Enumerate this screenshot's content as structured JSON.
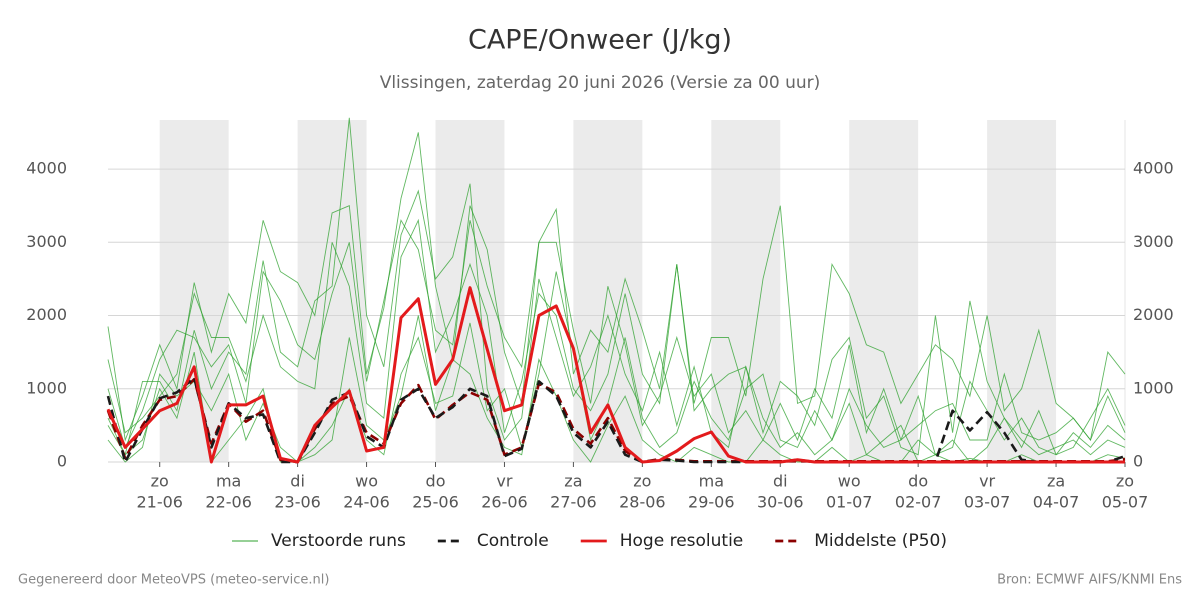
{
  "chart_data": {
    "type": "line",
    "title": "CAPE/Onweer (J/kg)",
    "subtitle": "Vlissingen, zaterdag 20 juni 2026 (Versie za 00 uur)",
    "footer_left": "Gegenereerd door MeteoVPS (meteo-service.nl)",
    "footer_right": "Bron: ECMWF AIFS/KNMI Ens",
    "x": [
      0.25,
      0.5,
      0.75,
      1,
      1.25,
      1.5,
      1.75,
      2,
      2.25,
      2.5,
      2.75,
      3,
      3.25,
      3.5,
      3.75,
      4,
      4.25,
      4.5,
      4.75,
      5,
      5.25,
      5.5,
      5.75,
      6,
      6.25,
      6.5,
      6.75,
      7,
      7.25,
      7.5,
      7.75,
      8,
      8.25,
      8.5,
      8.75,
      9,
      9.25,
      9.5,
      9.75,
      10,
      10.25,
      10.5,
      10.75,
      11,
      11.25,
      11.5,
      11.75,
      12,
      12.25,
      12.5,
      12.75,
      13,
      13.25,
      13.5,
      13.75,
      14,
      14.25,
      14.5,
      14.75,
      15
    ],
    "xlim": [
      0.25,
      15
    ],
    "xticks": [
      {
        "value": 1,
        "label": "zo",
        "date": "21-06"
      },
      {
        "value": 2,
        "label": "ma",
        "date": "22-06"
      },
      {
        "value": 3,
        "label": "di",
        "date": "23-06"
      },
      {
        "value": 4,
        "label": "wo",
        "date": "24-06"
      },
      {
        "value": 5,
        "label": "do",
        "date": "25-06"
      },
      {
        "value": 6,
        "label": "vr",
        "date": "26-06"
      },
      {
        "value": 7,
        "label": "za",
        "date": "27-06"
      },
      {
        "value": 8,
        "label": "zo",
        "date": "28-06"
      },
      {
        "value": 9,
        "label": "ma",
        "date": "29-06"
      },
      {
        "value": 10,
        "label": "di",
        "date": "30-06"
      },
      {
        "value": 11,
        "label": "wo",
        "date": "01-07"
      },
      {
        "value": 12,
        "label": "do",
        "date": "02-07"
      },
      {
        "value": 13,
        "label": "vr",
        "date": "03-07"
      },
      {
        "value": 14,
        "label": "za",
        "date": "04-07"
      },
      {
        "value": 15,
        "label": "zo",
        "date": "05-07"
      }
    ],
    "ylim": [
      0,
      4670
    ],
    "yticks": [
      0,
      1000,
      2000,
      3000,
      4000
    ],
    "grid": true,
    "ensemble": {
      "name": "Verstoorde runs",
      "color": "#2ca02c",
      "members": [
        [
          1850,
          300,
          900,
          1600,
          1000,
          2450,
          1500,
          2300,
          1900,
          3300,
          2600,
          2450,
          2000,
          3400,
          3500,
          1200,
          2100,
          3600,
          4500,
          2400,
          1400,
          3500,
          2900,
          1500,
          800,
          3000,
          3450,
          1200,
          1800,
          1500,
          2500,
          1800,
          1000,
          2700,
          800,
          1700,
          1700,
          900,
          2500,
          3500,
          800,
          900,
          2700,
          2300,
          1600,
          1500,
          800,
          1200,
          1600,
          1400,
          900,
          2000,
          700,
          1000,
          1800,
          800,
          600,
          300,
          1500,
          1200
        ],
        [
          500,
          100,
          1100,
          1100,
          700,
          1800,
          1000,
          1500,
          1200,
          2750,
          1500,
          1300,
          2200,
          2400,
          4700,
          2000,
          1300,
          3100,
          3700,
          2500,
          2800,
          3800,
          1000,
          300,
          600,
          2500,
          1700,
          900,
          1300,
          2000,
          1200,
          700,
          1500,
          500,
          1300,
          400,
          200,
          1300,
          600,
          200,
          400,
          100,
          300,
          1000,
          500,
          200,
          300,
          900,
          100,
          200,
          1100,
          700,
          300,
          600,
          200,
          100,
          400,
          200,
          500,
          300
        ],
        [
          300,
          0,
          200,
          1200,
          900,
          1100,
          700,
          1200,
          300,
          800,
          200,
          0,
          100,
          300,
          1700,
          500,
          300,
          900,
          2000,
          700,
          1400,
          1200,
          600,
          200,
          100,
          1400,
          900,
          300,
          0,
          500,
          900,
          300,
          100,
          0,
          200,
          100,
          0,
          0,
          300,
          100,
          0,
          0,
          200,
          0,
          100,
          0,
          0,
          300,
          100,
          0,
          50,
          0,
          0,
          100,
          0,
          0,
          0,
          0,
          100,
          50
        ],
        [
          1400,
          400,
          600,
          900,
          1200,
          2300,
          1700,
          1700,
          1100,
          2000,
          1300,
          1100,
          1000,
          3000,
          2400,
          800,
          600,
          2800,
          3300,
          1500,
          2000,
          2700,
          2000,
          400,
          1100,
          2300,
          2000,
          1000,
          700,
          1200,
          2300,
          1200,
          800,
          2700,
          700,
          1000,
          1200,
          1300,
          400,
          1100,
          900,
          500,
          1400,
          1700,
          600,
          900,
          200,
          100,
          2000,
          400,
          2200,
          1100,
          600,
          200,
          700,
          100,
          200,
          600,
          1000,
          500
        ],
        [
          600,
          100,
          300,
          1000,
          600,
          1500,
          0,
          300,
          600,
          1000,
          0,
          0,
          200,
          500,
          1000,
          300,
          100,
          1200,
          1700,
          800,
          900,
          1900,
          700,
          1000,
          200,
          1200,
          2600,
          1500,
          300,
          800,
          1700,
          600,
          200,
          400,
          1100,
          600,
          300,
          1000,
          1200,
          300,
          200,
          700,
          300,
          800,
          100,
          300,
          500,
          0,
          100,
          300,
          0,
          200,
          600,
          300,
          100,
          200,
          300,
          100,
          300,
          200
        ],
        [
          1000,
          200,
          700,
          1400,
          1800,
          1700,
          1300,
          1600,
          800,
          2600,
          2200,
          1600,
          1400,
          2300,
          3000,
          1100,
          2200,
          3300,
          2900,
          1800,
          1600,
          3300,
          2400,
          1700,
          1300,
          3000,
          3000,
          1800,
          800,
          2400,
          1600,
          500,
          900,
          1700,
          900,
          1200,
          400,
          700,
          300,
          800,
          300,
          1000,
          600,
          1600,
          400,
          1000,
          300,
          500,
          700,
          800,
          300,
          300,
          1200,
          400,
          300,
          400,
          600,
          300,
          900,
          400
        ]
      ]
    },
    "series": [
      {
        "name": "Controle",
        "color": "#1a1a1a",
        "dash": true,
        "values": [
          900,
          0,
          450,
          870,
          950,
          1150,
          200,
          800,
          600,
          650,
          0,
          0,
          400,
          850,
          950,
          350,
          200,
          850,
          1000,
          600,
          750,
          1000,
          900,
          80,
          180,
          1100,
          900,
          400,
          200,
          550,
          100,
          0,
          30,
          20,
          0,
          0,
          0,
          0,
          0,
          0,
          30,
          0,
          0,
          0,
          0,
          0,
          0,
          0,
          0,
          700,
          430,
          680,
          400,
          30,
          0,
          0,
          0,
          0,
          0,
          80
        ]
      },
      {
        "name": "Hoge resolutie",
        "color": "#e31a1c",
        "dash": false,
        "values": [
          720,
          200,
          450,
          700,
          800,
          1300,
          0,
          780,
          780,
          900,
          50,
          0,
          500,
          750,
          970,
          150,
          200,
          1970,
          2230,
          1060,
          1400,
          2380,
          1540,
          700,
          780,
          2000,
          2130,
          1550,
          400,
          780,
          200,
          0,
          20,
          150,
          320,
          410,
          80,
          0,
          0,
          0,
          30,
          0,
          0,
          0,
          0,
          0,
          0,
          0,
          0,
          0,
          0,
          0,
          0,
          0,
          0,
          0,
          0,
          0,
          0,
          0
        ]
      },
      {
        "name": "Middelste (P50)",
        "color": "#8b0000",
        "dash": true,
        "values": [
          700,
          50,
          500,
          850,
          900,
          1130,
          250,
          800,
          550,
          700,
          30,
          0,
          450,
          800,
          900,
          400,
          250,
          800,
          1050,
          580,
          780,
          950,
          850,
          100,
          200,
          1070,
          950,
          450,
          250,
          600,
          150,
          0,
          40,
          30,
          10,
          10,
          10,
          10,
          10,
          10,
          10,
          10,
          10,
          10,
          10,
          10,
          10,
          10,
          10,
          10,
          10,
          10,
          10,
          10,
          10,
          10,
          10,
          10,
          10,
          40
        ]
      }
    ]
  }
}
